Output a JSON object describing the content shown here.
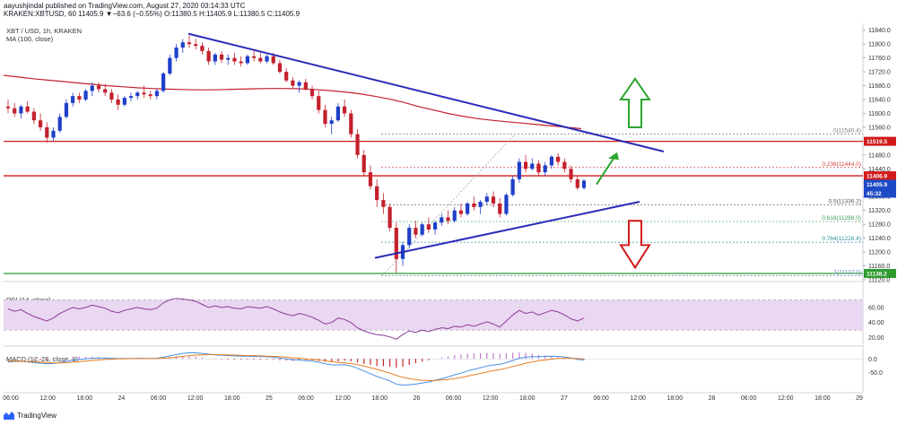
{
  "header": {
    "published_line": "aayushjindal published on TradingView.com, August 27, 2020 03:14:33 UTC",
    "symbol_line": "KRAKEN:XBTUSD, 60  11405.9  ▼−63.6 (−0.55%)  O:11380.5  H:11405.9  L:11380.5  C:11405.9"
  },
  "legend": {
    "pair": "XBT / USD, 1h, KRAKEN",
    "ma": "MA (100, close)",
    "rsi": "RSI (14, close)",
    "macd": "MACD (12, 26, close, 9)"
  },
  "price_axis": [
    "11840.0",
    "11800.0",
    "11760.0",
    "11720.0",
    "11680.0",
    "11640.0",
    "11600.0",
    "11560.0",
    "11520.0",
    "11480.0",
    "11440.0",
    "11400.0",
    "11360.0",
    "11320.0",
    "11280.0",
    "11240.0",
    "11200.0",
    "11160.0",
    "11120.0"
  ],
  "rsi_axis": [
    "60.00",
    "40.00",
    "20.00"
  ],
  "macd_axis": [
    "0.0",
    "-50.0"
  ],
  "time_axis": [
    "06:00",
    "12:00",
    "18:00",
    "24",
    "06:00",
    "12:00",
    "18:00",
    "25",
    "06:00",
    "12:00",
    "18:00",
    "26",
    "06:00",
    "12:00",
    "18:00",
    "27",
    "06:00",
    "12:00",
    "18:00",
    "28",
    "06:00",
    "12:00",
    "18:00",
    "29"
  ],
  "price_tags": {
    "resistance": "11519.5",
    "last": "11406.9",
    "current": "11405.9",
    "countdown": "45:32",
    "support": "11138.2"
  },
  "fib_labels": {
    "f0": "0(11540.4)",
    "f236": "0.236(11444.0)",
    "f5": "0.5(11336.2)",
    "f618": "0.618(11288.0)",
    "f764": "0.764(11228.4)",
    "f1": "1(11132.0)"
  },
  "footer": {
    "brand": "TradingView"
  },
  "colors": {
    "up": "#1f3fc9",
    "down": "#c4202c",
    "ma": "#c4202c",
    "trend": "#2a2ab8",
    "resistance": "#d11a1a",
    "support": "#2e9a2e",
    "rsi": "#8e3b96",
    "rsi_band": "#ead7f2",
    "macd": "#4a90e2",
    "signal": "#e67e22",
    "arrow_up": "#2ea52e",
    "arrow_down": "#d11a1a"
  },
  "chart_data": [
    {
      "type": "candlestick",
      "title": "XBT / USD, 1h, KRAKEN",
      "ylim": [
        11120,
        11860
      ],
      "ohlc": [
        [
          11620,
          11640,
          11600,
          11615
        ],
        [
          11615,
          11630,
          11590,
          11600
        ],
        [
          11600,
          11625,
          11585,
          11620
        ],
        [
          11620,
          11635,
          11600,
          11605
        ],
        [
          11605,
          11615,
          11570,
          11580
        ],
        [
          11580,
          11600,
          11550,
          11560
        ],
        [
          11560,
          11575,
          11515,
          11530
        ],
        [
          11530,
          11560,
          11520,
          11550
        ],
        [
          11550,
          11600,
          11545,
          11590
        ],
        [
          11590,
          11640,
          11585,
          11630
        ],
        [
          11630,
          11660,
          11620,
          11650
        ],
        [
          11650,
          11660,
          11630,
          11640
        ],
        [
          11640,
          11670,
          11635,
          11665
        ],
        [
          11665,
          11690,
          11650,
          11680
        ],
        [
          11680,
          11690,
          11660,
          11670
        ],
        [
          11670,
          11685,
          11650,
          11660
        ],
        [
          11660,
          11670,
          11630,
          11640
        ],
        [
          11640,
          11655,
          11610,
          11625
        ],
        [
          11625,
          11650,
          11620,
          11645
        ],
        [
          11645,
          11660,
          11635,
          11650
        ],
        [
          11650,
          11665,
          11640,
          11660
        ],
        [
          11660,
          11680,
          11645,
          11655
        ],
        [
          11655,
          11665,
          11640,
          11650
        ],
        [
          11650,
          11670,
          11640,
          11665
        ],
        [
          11665,
          11720,
          11660,
          11715
        ],
        [
          11715,
          11770,
          11710,
          11760
        ],
        [
          11760,
          11800,
          11750,
          11790
        ],
        [
          11790,
          11815,
          11775,
          11805
        ],
        [
          11805,
          11825,
          11790,
          11800
        ],
        [
          11800,
          11815,
          11785,
          11795
        ],
        [
          11795,
          11805,
          11770,
          11780
        ],
        [
          11780,
          11790,
          11740,
          11750
        ],
        [
          11750,
          11775,
          11740,
          11770
        ],
        [
          11770,
          11780,
          11745,
          11755
        ],
        [
          11755,
          11770,
          11740,
          11760
        ],
        [
          11760,
          11775,
          11740,
          11750
        ],
        [
          11750,
          11765,
          11735,
          11745
        ],
        [
          11745,
          11770,
          11740,
          11765
        ],
        [
          11765,
          11780,
          11750,
          11760
        ],
        [
          11760,
          11775,
          11745,
          11750
        ],
        [
          11750,
          11770,
          11745,
          11765
        ],
        [
          11765,
          11775,
          11740,
          11745
        ],
        [
          11745,
          11755,
          11715,
          11720
        ],
        [
          11720,
          11730,
          11690,
          11695
        ],
        [
          11695,
          11705,
          11670,
          11680
        ],
        [
          11680,
          11695,
          11660,
          11690
        ],
        [
          11690,
          11700,
          11665,
          11670
        ],
        [
          11670,
          11680,
          11640,
          11650
        ],
        [
          11650,
          11665,
          11600,
          11610
        ],
        [
          11610,
          11625,
          11560,
          11570
        ],
        [
          11570,
          11590,
          11540,
          11580
        ],
        [
          11580,
          11630,
          11575,
          11620
        ],
        [
          11620,
          11640,
          11590,
          11600
        ],
        [
          11600,
          11610,
          11530,
          11540
        ],
        [
          11540,
          11555,
          11470,
          11480
        ],
        [
          11480,
          11495,
          11420,
          11430
        ],
        [
          11430,
          11450,
          11380,
          11390
        ],
        [
          11390,
          11410,
          11330,
          11350
        ],
        [
          11350,
          11370,
          11310,
          11330
        ],
        [
          11330,
          11340,
          11260,
          11270
        ],
        [
          11270,
          11285,
          11140,
          11180
        ],
        [
          11180,
          11230,
          11160,
          11220
        ],
        [
          11220,
          11280,
          11210,
          11270
        ],
        [
          11270,
          11290,
          11240,
          11250
        ],
        [
          11250,
          11285,
          11245,
          11280
        ],
        [
          11280,
          11300,
          11255,
          11265
        ],
        [
          11265,
          11290,
          11250,
          11285
        ],
        [
          11285,
          11310,
          11275,
          11300
        ],
        [
          11300,
          11320,
          11280,
          11290
        ],
        [
          11290,
          11330,
          11285,
          11320
        ],
        [
          11320,
          11340,
          11300,
          11310
        ],
        [
          11310,
          11345,
          11305,
          11340
        ],
        [
          11340,
          11360,
          11320,
          11330
        ],
        [
          11330,
          11350,
          11310,
          11345
        ],
        [
          11345,
          11370,
          11335,
          11360
        ],
        [
          11360,
          11375,
          11330,
          11340
        ],
        [
          11340,
          11355,
          11300,
          11310
        ],
        [
          11310,
          11370,
          11305,
          11365
        ],
        [
          11365,
          11420,
          11360,
          11410
        ],
        [
          11410,
          11470,
          11400,
          11460
        ],
        [
          11460,
          11480,
          11430,
          11440
        ],
        [
          11440,
          11470,
          11435,
          11455
        ],
        [
          11455,
          11465,
          11420,
          11430
        ],
        [
          11430,
          11460,
          11420,
          11450
        ],
        [
          11450,
          11480,
          11440,
          11475
        ],
        [
          11475,
          11485,
          11450,
          11460
        ],
        [
          11460,
          11470,
          11430,
          11440
        ],
        [
          11440,
          11450,
          11400,
          11410
        ],
        [
          11410,
          11420,
          11380,
          11385
        ],
        [
          11385,
          11410,
          11380,
          11406
        ]
      ]
    },
    {
      "type": "line",
      "title": "RSI (14, close)",
      "ylim": [
        10,
        80
      ],
      "values": [
        58,
        55,
        57,
        52,
        48,
        45,
        42,
        46,
        52,
        56,
        60,
        58,
        60,
        63,
        61,
        59,
        55,
        53,
        56,
        58,
        60,
        58,
        57,
        59,
        66,
        70,
        72,
        71,
        70,
        68,
        64,
        60,
        62,
        60,
        61,
        59,
        58,
        61,
        60,
        59,
        61,
        58,
        54,
        51,
        49,
        52,
        50,
        47,
        43,
        38,
        40,
        46,
        44,
        40,
        33,
        29,
        26,
        24,
        23,
        21,
        18,
        24,
        29,
        27,
        30,
        28,
        31,
        33,
        32,
        35,
        34,
        37,
        35,
        38,
        41,
        38,
        34,
        42,
        50,
        56,
        52,
        54,
        50,
        53,
        56,
        54,
        50,
        45,
        42,
        46
      ]
    },
    {
      "type": "line",
      "title": "MACD (12, 26, close, 9)",
      "ylim": [
        -120,
        40
      ],
      "series": [
        {
          "name": "MACD",
          "values": [
            -12,
            -10,
            -9,
            -11,
            -14,
            -16,
            -18,
            -17,
            -13,
            -9,
            -5,
            -2,
            0,
            2,
            3,
            3,
            2,
            1,
            1,
            1,
            2,
            2,
            1,
            2,
            6,
            11,
            16,
            20,
            22,
            22,
            20,
            17,
            15,
            13,
            12,
            11,
            10,
            10,
            9,
            8,
            8,
            6,
            3,
            0,
            -3,
            -4,
            -6,
            -8,
            -12,
            -18,
            -22,
            -22,
            -21,
            -26,
            -34,
            -44,
            -54,
            -64,
            -72,
            -80,
            -92,
            -96,
            -94,
            -92,
            -88,
            -84,
            -78,
            -72,
            -66,
            -58,
            -52,
            -44,
            -38,
            -32,
            -26,
            -22,
            -20,
            -14,
            -6,
            2,
            6,
            8,
            8,
            9,
            10,
            9,
            7,
            3,
            -2,
            -4
          ]
        },
        {
          "name": "Signal",
          "values": [
            -8,
            -9,
            -9,
            -10,
            -11,
            -12,
            -14,
            -15,
            -15,
            -14,
            -12,
            -10,
            -8,
            -6,
            -4,
            -2,
            -1,
            0,
            0,
            1,
            1,
            1,
            1,
            1,
            2,
            4,
            6,
            9,
            12,
            14,
            15,
            16,
            16,
            15,
            15,
            14,
            13,
            12,
            12,
            11,
            10,
            9,
            8,
            6,
            4,
            2,
            0,
            -2,
            -4,
            -7,
            -10,
            -13,
            -15,
            -17,
            -21,
            -26,
            -32,
            -38,
            -45,
            -52,
            -60,
            -67,
            -72,
            -76,
            -78,
            -79,
            -79,
            -77,
            -75,
            -72,
            -68,
            -63,
            -58,
            -53,
            -48,
            -43,
            -39,
            -34,
            -28,
            -22,
            -16,
            -11,
            -7,
            -4,
            -1,
            1,
            2,
            2,
            1,
            0
          ]
        }
      ]
    }
  ]
}
